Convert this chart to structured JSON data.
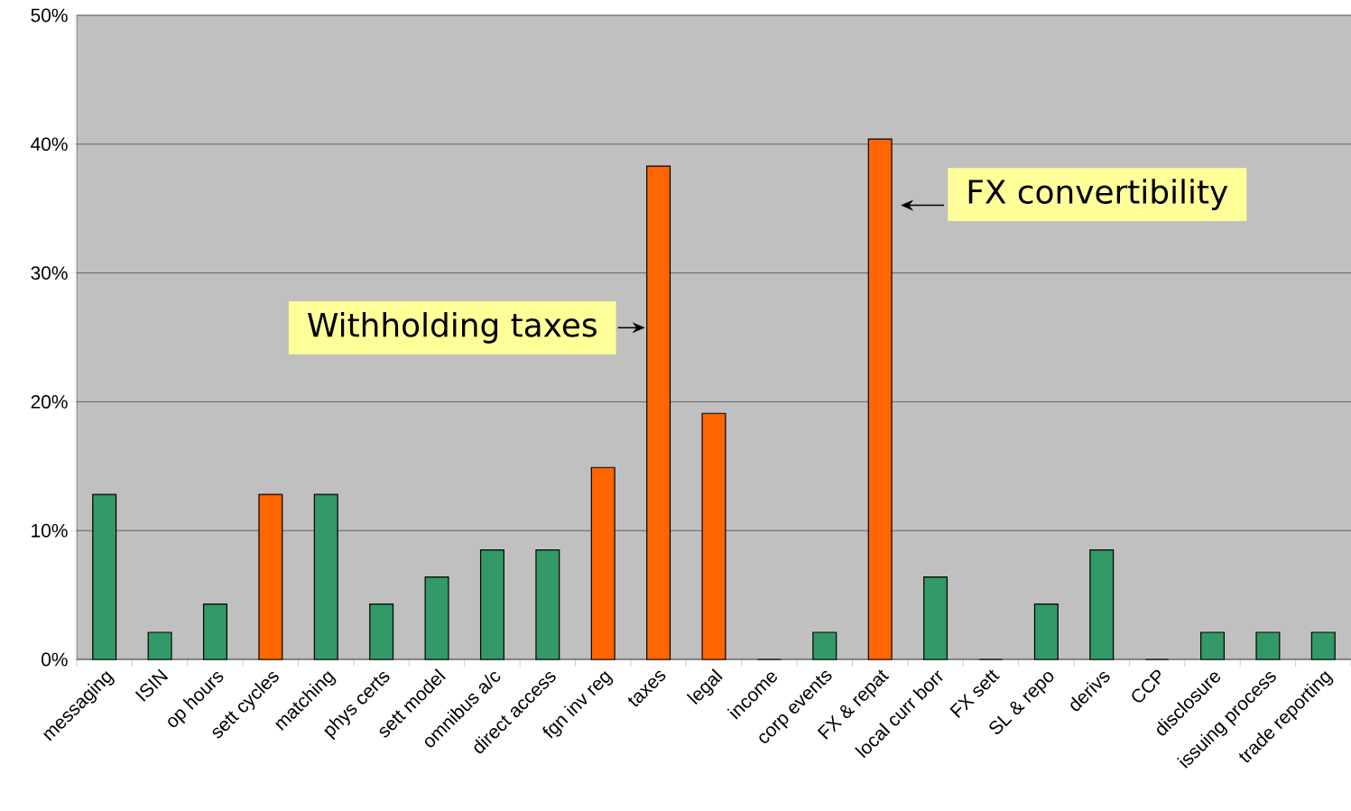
{
  "chart_data": {
    "type": "bar",
    "categories": [
      "messaging",
      "ISIN",
      "op hours",
      "sett cycles",
      "matching",
      "phys certs",
      "sett model",
      "omnibus a/c",
      "direct access",
      "fgn inv reg",
      "taxes",
      "legal",
      "income",
      "corp events",
      "FX & repat",
      "local curr borr",
      "FX sett",
      "SL & repo",
      "derivs",
      "CCP",
      "disclosure",
      "issuing process",
      "trade reporting"
    ],
    "values": [
      12.8,
      2.1,
      4.3,
      12.8,
      12.8,
      4.3,
      6.4,
      8.5,
      8.5,
      14.9,
      38.3,
      19.1,
      0,
      2.1,
      40.4,
      6.4,
      0,
      4.3,
      8.5,
      0,
      2.1,
      2.1,
      2.1
    ],
    "colors": [
      "#339966",
      "#339966",
      "#339966",
      "#ff6600",
      "#339966",
      "#339966",
      "#339966",
      "#339966",
      "#339966",
      "#ff6600",
      "#ff6600",
      "#ff6600",
      "#339966",
      "#339966",
      "#ff6600",
      "#339966",
      "#339966",
      "#339966",
      "#339966",
      "#339966",
      "#339966",
      "#339966",
      "#339966"
    ],
    "ylim": [
      0,
      50
    ],
    "yticks": [
      {
        "value": 0,
        "label": "0%"
      },
      {
        "value": 10,
        "label": "10%"
      },
      {
        "value": 20,
        "label": "20%"
      },
      {
        "value": 30,
        "label": "30%"
      },
      {
        "value": 40,
        "label": "40%"
      },
      {
        "value": 50,
        "label": "50%"
      }
    ],
    "grid": "y",
    "annotations": [
      "Withholding taxes",
      "FX convertibility"
    ]
  }
}
